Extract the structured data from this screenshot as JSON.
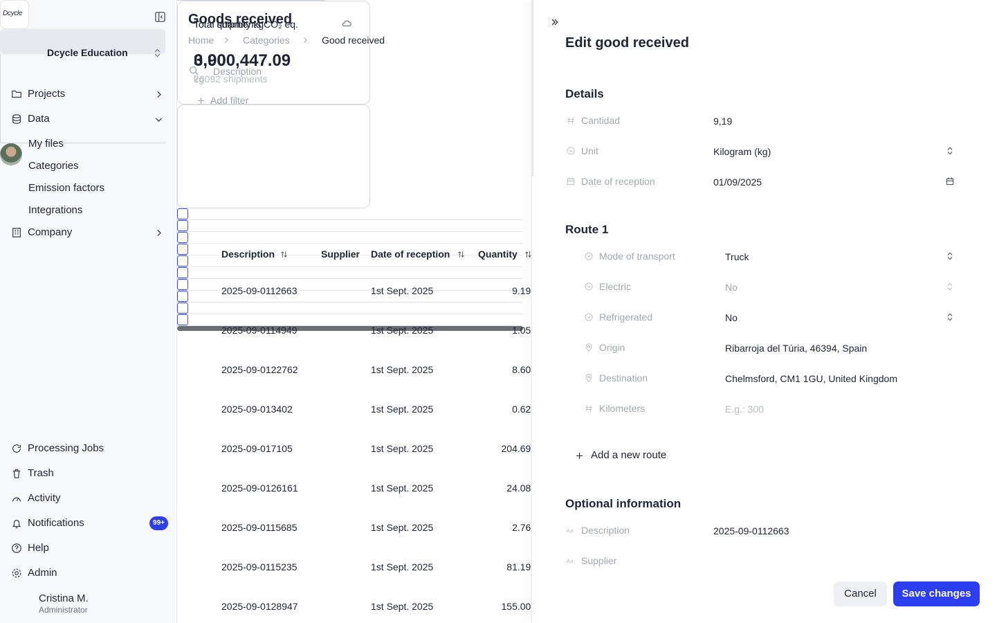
{
  "sidebar": {
    "logo": "Dcycle",
    "org": "Dcycle Education",
    "nav": [
      {
        "label": "Projects"
      },
      {
        "label": "Data",
        "children": [
          "My files",
          "Categories",
          "Emission factors",
          "Integrations"
        ]
      },
      {
        "label": "Company"
      }
    ],
    "bottom_nav": [
      {
        "label": "Processing Jobs"
      },
      {
        "label": "Trash"
      },
      {
        "label": "Activity"
      },
      {
        "label": "Notifications",
        "badge": "99+"
      },
      {
        "label": "Help"
      },
      {
        "label": "Admin"
      }
    ],
    "user": {
      "name": "Cristina M.",
      "role": "Administrator"
    }
  },
  "main": {
    "title": "Goods received",
    "breadcrumbs": [
      "Home",
      "Categories",
      "Good received"
    ],
    "search_placeholder": "Description",
    "add_filter": "Add filter",
    "cards": [
      {
        "title": "Total shipments CO₂ eq.",
        "value": "0.00",
        "sub": "kg"
      },
      {
        "title": "Total quantity kg",
        "value": "3,900,447.09",
        "sub": "26092 shipments"
      }
    ],
    "table": {
      "columns": [
        "Description",
        "Supplier",
        "Date of reception",
        "Quantity"
      ],
      "rows": [
        {
          "description": "2025-09-0112663",
          "date": "1st Sept. 2025",
          "quantity": "9.19 kg"
        },
        {
          "description": "2025-09-0114949",
          "date": "1st Sept. 2025",
          "quantity": "1.05 kg"
        },
        {
          "description": "2025-09-0122762",
          "date": "1st Sept. 2025",
          "quantity": "8.60 kg"
        },
        {
          "description": "2025-09-013402",
          "date": "1st Sept. 2025",
          "quantity": "0.62 kg"
        },
        {
          "description": "2025-09-017105",
          "date": "1st Sept. 2025",
          "quantity": "204.69 kg"
        },
        {
          "description": "2025-09-0126161",
          "date": "1st Sept. 2025",
          "quantity": "24.08 kg"
        },
        {
          "description": "2025-09-0115685",
          "date": "1st Sept. 2025",
          "quantity": "2.76 kg"
        },
        {
          "description": "2025-09-0115235",
          "date": "1st Sept. 2025",
          "quantity": "81.19 kg"
        },
        {
          "description": "2025-09-0128947",
          "date": "1st Sept. 2025",
          "quantity": "155.00 kg"
        }
      ]
    }
  },
  "panel": {
    "title": "Edit good received",
    "details": {
      "heading": "Details",
      "fields": [
        {
          "label": "Cantidad",
          "value": "9,19"
        },
        {
          "label": "Unit",
          "value": "Kilogram (kg)"
        },
        {
          "label": "Date of reception",
          "value": "01/09/2025"
        }
      ]
    },
    "route": {
      "heading": "Route 1",
      "fields": [
        {
          "label": "Mode of transport",
          "value": "Truck"
        },
        {
          "label": "Electric",
          "value": "No"
        },
        {
          "label": "Refrigerated",
          "value": "No"
        },
        {
          "label": "Origin",
          "value": "Ribarroja del Túria, 46394, Spain"
        },
        {
          "label": "Destination",
          "value": "Chelmsford, CM1 1GU, United Kingdom"
        },
        {
          "label": "Kilometers",
          "placeholder": "E.g.: 300"
        }
      ]
    },
    "add_route": "Add a new route",
    "optional": {
      "heading": "Optional information",
      "fields": [
        {
          "label": "Description",
          "value": "2025-09-0112663"
        },
        {
          "label": "Supplier"
        }
      ]
    },
    "cancel": "Cancel",
    "save": "Save changes"
  }
}
